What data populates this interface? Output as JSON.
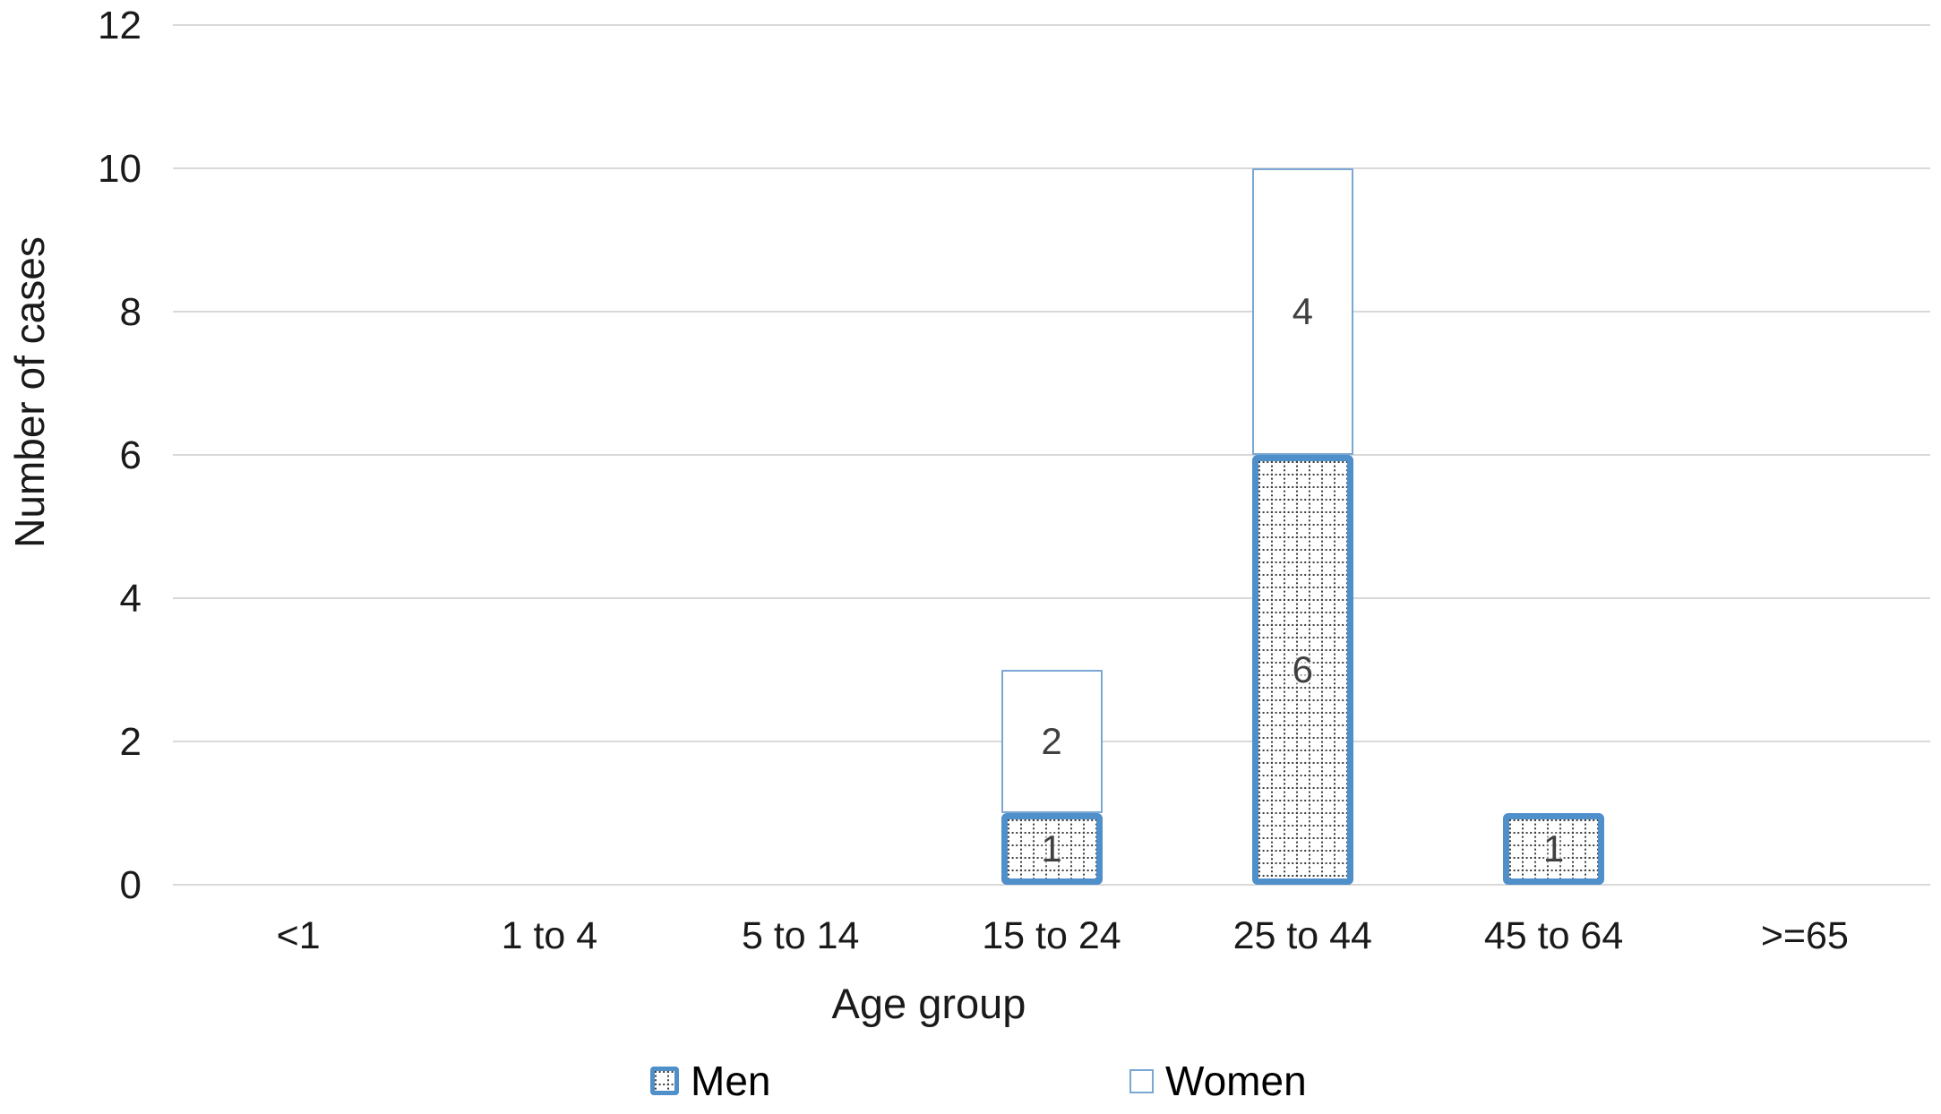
{
  "chart_data": {
    "type": "bar",
    "stacked": true,
    "title": "",
    "xlabel": "Age group",
    "ylabel": "Number of cases",
    "categories": [
      "<1",
      "1 to 4",
      "5 to 14",
      "15 to 24",
      "25 to 44",
      "45 to 64",
      ">=65"
    ],
    "series": [
      {
        "name": "Men",
        "fill_style": "dotted-grid",
        "values": [
          0,
          0,
          0,
          1,
          6,
          1,
          0
        ]
      },
      {
        "name": "Women",
        "fill_style": "plain-white",
        "values": [
          0,
          0,
          0,
          2,
          4,
          0,
          0
        ]
      }
    ],
    "data_labels_shown": [
      "1",
      "2",
      "6",
      "4",
      "1"
    ],
    "ylim": [
      0,
      12
    ],
    "yticks": [
      0,
      2,
      4,
      6,
      8,
      10,
      12
    ],
    "grid": true,
    "legend_position": "bottom"
  },
  "colors": {
    "men_border": "#4f8fca",
    "women_border": "#7aa7d4",
    "pattern_dots": "#3f3f3f",
    "gridline": "#d9d9d9",
    "tick_text": "#1a1a1a",
    "data_label_text": "#404040",
    "background": "#ffffff"
  }
}
